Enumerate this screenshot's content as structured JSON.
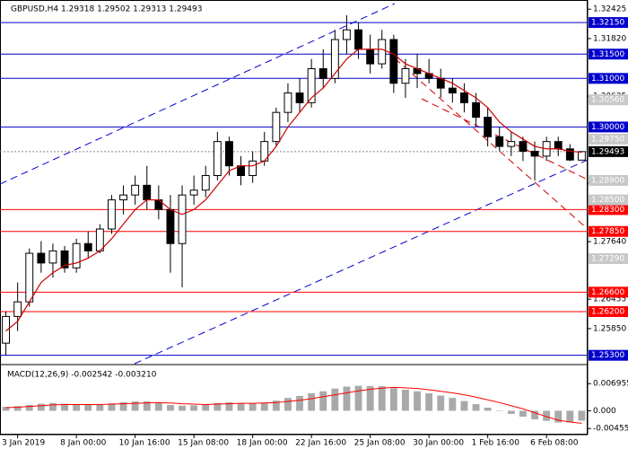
{
  "chart_data": [
    {
      "type": "candlestick",
      "title": "GBPUSD,H4  1.29318 1.29502 1.29313 1.29493",
      "x": [
        null,
        "3 Jan 2019",
        null,
        null,
        null,
        null,
        "8 Jan 00:00",
        null,
        null,
        null,
        null,
        "10 Jan 16:00",
        null,
        null,
        null,
        null,
        "15 Jan 08:00",
        null,
        null,
        null,
        null,
        "18 Jan 00:00",
        null,
        null,
        null,
        null,
        "22 Jan 16:00",
        null,
        null,
        null,
        null,
        "25 Jan 08:00",
        null,
        null,
        null,
        null,
        "30 Jan 00:00",
        null,
        null,
        null,
        null,
        "1 Feb 16:00",
        null,
        null,
        null,
        null,
        "6 Feb 08:00",
        null,
        null,
        null
      ],
      "open": [
        1.2555,
        1.261,
        1.264,
        1.274,
        1.272,
        1.2745,
        1.271,
        1.276,
        1.2745,
        1.279,
        1.285,
        1.286,
        1.288,
        1.285,
        1.283,
        1.276,
        1.286,
        1.287,
        1.29,
        1.297,
        1.292,
        1.29,
        1.293,
        1.297,
        1.303,
        1.307,
        1.305,
        1.312,
        1.31,
        1.318,
        1.32,
        1.316,
        1.313,
        1.318,
        1.309,
        1.312,
        1.311,
        1.31,
        1.308,
        1.307,
        1.305,
        1.302,
        1.298,
        1.296,
        1.297,
        1.295,
        1.294,
        1.297,
        1.2955,
        1.29318
      ],
      "high": [
        1.262,
        1.268,
        1.275,
        1.2765,
        1.276,
        1.2755,
        1.277,
        1.2785,
        1.28,
        1.286,
        1.288,
        1.29,
        1.292,
        1.288,
        1.286,
        1.288,
        1.29,
        1.292,
        1.299,
        1.298,
        1.294,
        1.295,
        1.299,
        1.304,
        1.309,
        1.31,
        1.314,
        1.316,
        1.32,
        1.323,
        1.3215,
        1.319,
        1.32,
        1.319,
        1.314,
        1.315,
        1.314,
        1.312,
        1.31,
        1.309,
        1.307,
        1.304,
        1.3,
        1.299,
        1.298,
        1.297,
        1.298,
        1.298,
        1.2965,
        1.29502
      ],
      "low": [
        1.253,
        1.258,
        1.263,
        1.27,
        1.269,
        1.27,
        1.27,
        1.273,
        1.274,
        1.278,
        1.282,
        1.284,
        1.283,
        1.281,
        1.27,
        1.267,
        1.284,
        1.2855,
        1.289,
        1.29,
        1.288,
        1.2885,
        1.292,
        1.296,
        1.301,
        1.303,
        1.304,
        1.308,
        1.309,
        1.315,
        1.314,
        1.311,
        1.312,
        1.307,
        1.306,
        1.308,
        1.309,
        1.306,
        1.305,
        1.303,
        1.3,
        1.296,
        1.295,
        1.294,
        1.293,
        1.289,
        1.293,
        1.294,
        1.293,
        1.29313
      ],
      "close": [
        1.261,
        1.264,
        1.274,
        1.272,
        1.2745,
        1.271,
        1.276,
        1.2745,
        1.279,
        1.285,
        1.286,
        1.288,
        1.285,
        1.283,
        1.276,
        1.286,
        1.287,
        1.29,
        1.297,
        1.292,
        1.29,
        1.293,
        1.297,
        1.303,
        1.307,
        1.305,
        1.312,
        1.31,
        1.318,
        1.32,
        1.316,
        1.313,
        1.318,
        1.309,
        1.312,
        1.311,
        1.31,
        1.308,
        1.307,
        1.305,
        1.302,
        1.298,
        1.296,
        1.297,
        1.295,
        1.294,
        1.297,
        1.2955,
        1.2932,
        1.29493
      ],
      "ma": {
        "color": "#cc0000",
        "values": [
          1.258,
          1.26,
          1.264,
          1.268,
          1.27,
          1.2715,
          1.272,
          1.273,
          1.2745,
          1.277,
          1.28,
          1.283,
          1.285,
          1.285,
          1.283,
          1.282,
          1.283,
          1.285,
          1.288,
          1.291,
          1.292,
          1.292,
          1.293,
          1.296,
          1.3,
          1.303,
          1.306,
          1.308,
          1.311,
          1.314,
          1.316,
          1.316,
          1.316,
          1.315,
          1.313,
          1.312,
          1.311,
          1.31,
          1.309,
          1.3075,
          1.306,
          1.304,
          1.301,
          1.299,
          1.2975,
          1.296,
          1.2955,
          1.2955,
          1.295,
          1.2948
        ]
      },
      "ylim": [
        1.2522,
        1.3254
      ],
      "yticks": [
        {
          "value": 1.32425,
          "label": "1.32425"
        },
        {
          "value": 1.3182,
          "label": "1.31820"
        },
        {
          "value": 1.30635,
          "label": "1.30635"
        },
        {
          "value": 1.2884,
          "label": "1.28840"
        },
        {
          "value": 1.2764,
          "label": "1.27640"
        },
        {
          "value": 1.26455,
          "label": "1.26455"
        },
        {
          "value": 1.2585,
          "label": "1.25850"
        }
      ],
      "levels": [
        {
          "value": 1.3215,
          "label": "1.32150",
          "color": "#0000cd"
        },
        {
          "value": 1.315,
          "label": "1.31500",
          "color": "#0000cd"
        },
        {
          "value": 1.31,
          "label": "1.31000",
          "color": "#0000cd"
        },
        {
          "value": 1.3,
          "label": "1.30000",
          "color": "#0000cd"
        },
        {
          "value": 1.283,
          "label": "1.28300",
          "color": "#ff0000"
        },
        {
          "value": 1.2785,
          "label": "1.27850",
          "color": "#ff0000"
        },
        {
          "value": 1.266,
          "label": "1.26600",
          "color": "#ff0000"
        },
        {
          "value": 1.262,
          "label": "1.26200",
          "color": "#ff0000"
        },
        {
          "value": 1.253,
          "label": "1.25300",
          "color": "#0000cd"
        }
      ],
      "indicator_tags": [
        {
          "value": 1.3056,
          "label": "1.30560"
        },
        {
          "value": 1.2975,
          "label": "1.29750"
        },
        {
          "value": 1.289,
          "label": "1.28900"
        },
        {
          "value": 1.285,
          "label": "1.28500"
        },
        {
          "value": 1.2729,
          "label": "1.27290"
        }
      ],
      "price_tag": {
        "value": 1.29493,
        "label": "1.29493"
      }
    },
    {
      "type": "macd",
      "title": "MACD(12,26,9) -0.002542 -0.003210",
      "series": [
        {
          "kind": "bar",
          "color": "#a9a9a9",
          "values": [
            0.001,
            0.0012,
            0.0015,
            0.0018,
            0.002,
            0.0018,
            0.0017,
            0.0016,
            0.0017,
            0.0019,
            0.0022,
            0.0024,
            0.0024,
            0.0021,
            0.0015,
            0.0013,
            0.0014,
            0.0016,
            0.002,
            0.0022,
            0.002,
            0.0019,
            0.0021,
            0.0026,
            0.0033,
            0.0038,
            0.0045,
            0.005,
            0.0057,
            0.0062,
            0.0064,
            0.0063,
            0.0063,
            0.0058,
            0.0054,
            0.005,
            0.0045,
            0.0039,
            0.0033,
            0.0025,
            0.0017,
            0.0008,
            0.0,
            -0.0008,
            -0.0015,
            -0.0022,
            -0.0026,
            -0.003,
            -0.003,
            -0.002542
          ]
        },
        {
          "kind": "line",
          "color": "#ff0000",
          "values": [
            0.0008,
            0.0009,
            0.0011,
            0.0013,
            0.0015,
            0.0016,
            0.0016,
            0.0016,
            0.0016,
            0.0017,
            0.0018,
            0.0019,
            0.002,
            0.0021,
            0.002,
            0.0018,
            0.0017,
            0.0016,
            0.0017,
            0.0018,
            0.0019,
            0.0019,
            0.002,
            0.0021,
            0.0024,
            0.0027,
            0.0031,
            0.0036,
            0.0041,
            0.0046,
            0.0051,
            0.0055,
            0.0058,
            0.006,
            0.0059,
            0.0057,
            0.0054,
            0.005,
            0.0046,
            0.0041,
            0.0035,
            0.0028,
            0.0021,
            0.0013,
            0.0005,
            -0.0005,
            -0.0015,
            -0.0024,
            -0.0029,
            -0.00321
          ]
        }
      ],
      "ylim": [
        -0.0052,
        0.0077
      ],
      "yticks": [
        0.006955,
        {
          "value": 0,
          "label": "0.000"
        },
        -0.004551
      ]
    }
  ]
}
